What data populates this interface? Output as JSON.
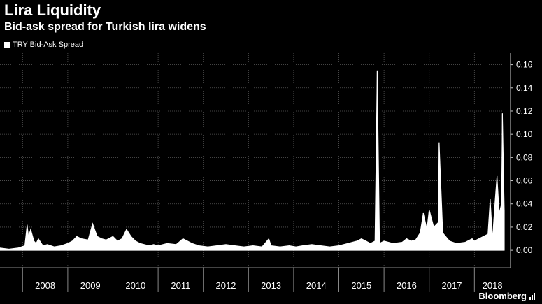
{
  "title": "Lira Liquidity",
  "subtitle": "Bid-ask spread for Turkish lira widens",
  "legend": {
    "label": "TRY Bid-Ask Spread",
    "color": "#ffffff"
  },
  "brand": "Bloomberg",
  "chart_data": {
    "type": "area",
    "title": "Lira Liquidity",
    "subtitle": "Bid-ask spread for Turkish lira widens",
    "xlabel": "",
    "ylabel": "",
    "x_range": [
      2007.5,
      2018.8
    ],
    "ylim": [
      -0.015,
      0.17
    ],
    "y_ticks": [
      0.0,
      0.02,
      0.04,
      0.06,
      0.08,
      0.1,
      0.12,
      0.14,
      0.16
    ],
    "y_tick_labels": [
      "0.00",
      "0.02",
      "0.04",
      "0.06",
      "0.08",
      "0.10",
      "0.12",
      "0.14",
      "0.16"
    ],
    "x_tick_labels": [
      "2008",
      "2009",
      "2010",
      "2011",
      "2012",
      "2013",
      "2014",
      "2015",
      "2016",
      "2017",
      "2018"
    ],
    "grid": true,
    "legend_position": "top-left",
    "series": [
      {
        "name": "TRY Bid-Ask Spread",
        "color": "#ffffff",
        "x": [
          2007.5,
          2007.7,
          2007.9,
          2008.05,
          2008.1,
          2008.13,
          2008.18,
          2008.25,
          2008.3,
          2008.35,
          2008.45,
          2008.55,
          2008.7,
          2008.85,
          2009.0,
          2009.1,
          2009.2,
          2009.3,
          2009.45,
          2009.55,
          2009.65,
          2009.75,
          2009.85,
          2010.0,
          2010.1,
          2010.2,
          2010.3,
          2010.4,
          2010.5,
          2010.6,
          2010.7,
          2010.8,
          2010.9,
          2011.0,
          2011.2,
          2011.4,
          2011.55,
          2011.65,
          2011.75,
          2011.9,
          2012.1,
          2012.3,
          2012.5,
          2012.7,
          2012.9,
          2013.1,
          2013.3,
          2013.45,
          2013.5,
          2013.7,
          2013.9,
          2014.05,
          2014.2,
          2014.4,
          2014.6,
          2014.8,
          2015.0,
          2015.2,
          2015.4,
          2015.5,
          2015.6,
          2015.7,
          2015.8,
          2015.85,
          2015.9,
          2015.95,
          2016.0,
          2016.2,
          2016.4,
          2016.5,
          2016.6,
          2016.7,
          2016.8,
          2016.87,
          2016.95,
          2017.0,
          2017.1,
          2017.2,
          2017.22,
          2017.3,
          2017.45,
          2017.6,
          2017.8,
          2017.95,
          2018.0,
          2018.1,
          2018.2,
          2018.3,
          2018.35,
          2018.4,
          2018.45,
          2018.5,
          2018.55,
          2018.6,
          2018.62,
          2018.66
        ],
        "y": [
          0.002,
          0.001,
          0.002,
          0.004,
          0.022,
          0.012,
          0.018,
          0.008,
          0.006,
          0.01,
          0.004,
          0.005,
          0.003,
          0.004,
          0.006,
          0.008,
          0.012,
          0.01,
          0.009,
          0.023,
          0.012,
          0.01,
          0.009,
          0.012,
          0.008,
          0.01,
          0.018,
          0.012,
          0.008,
          0.006,
          0.005,
          0.004,
          0.005,
          0.004,
          0.006,
          0.005,
          0.01,
          0.008,
          0.006,
          0.004,
          0.003,
          0.004,
          0.005,
          0.004,
          0.003,
          0.004,
          0.003,
          0.01,
          0.004,
          0.003,
          0.004,
          0.003,
          0.004,
          0.005,
          0.004,
          0.003,
          0.004,
          0.006,
          0.008,
          0.01,
          0.008,
          0.006,
          0.008,
          0.155,
          0.006,
          0.007,
          0.008,
          0.006,
          0.007,
          0.01,
          0.008,
          0.009,
          0.015,
          0.032,
          0.018,
          0.035,
          0.02,
          0.024,
          0.093,
          0.015,
          0.008,
          0.006,
          0.007,
          0.01,
          0.008,
          0.01,
          0.012,
          0.014,
          0.044,
          0.01,
          0.038,
          0.064,
          0.032,
          0.04,
          0.118,
          0.035
        ]
      }
    ]
  }
}
